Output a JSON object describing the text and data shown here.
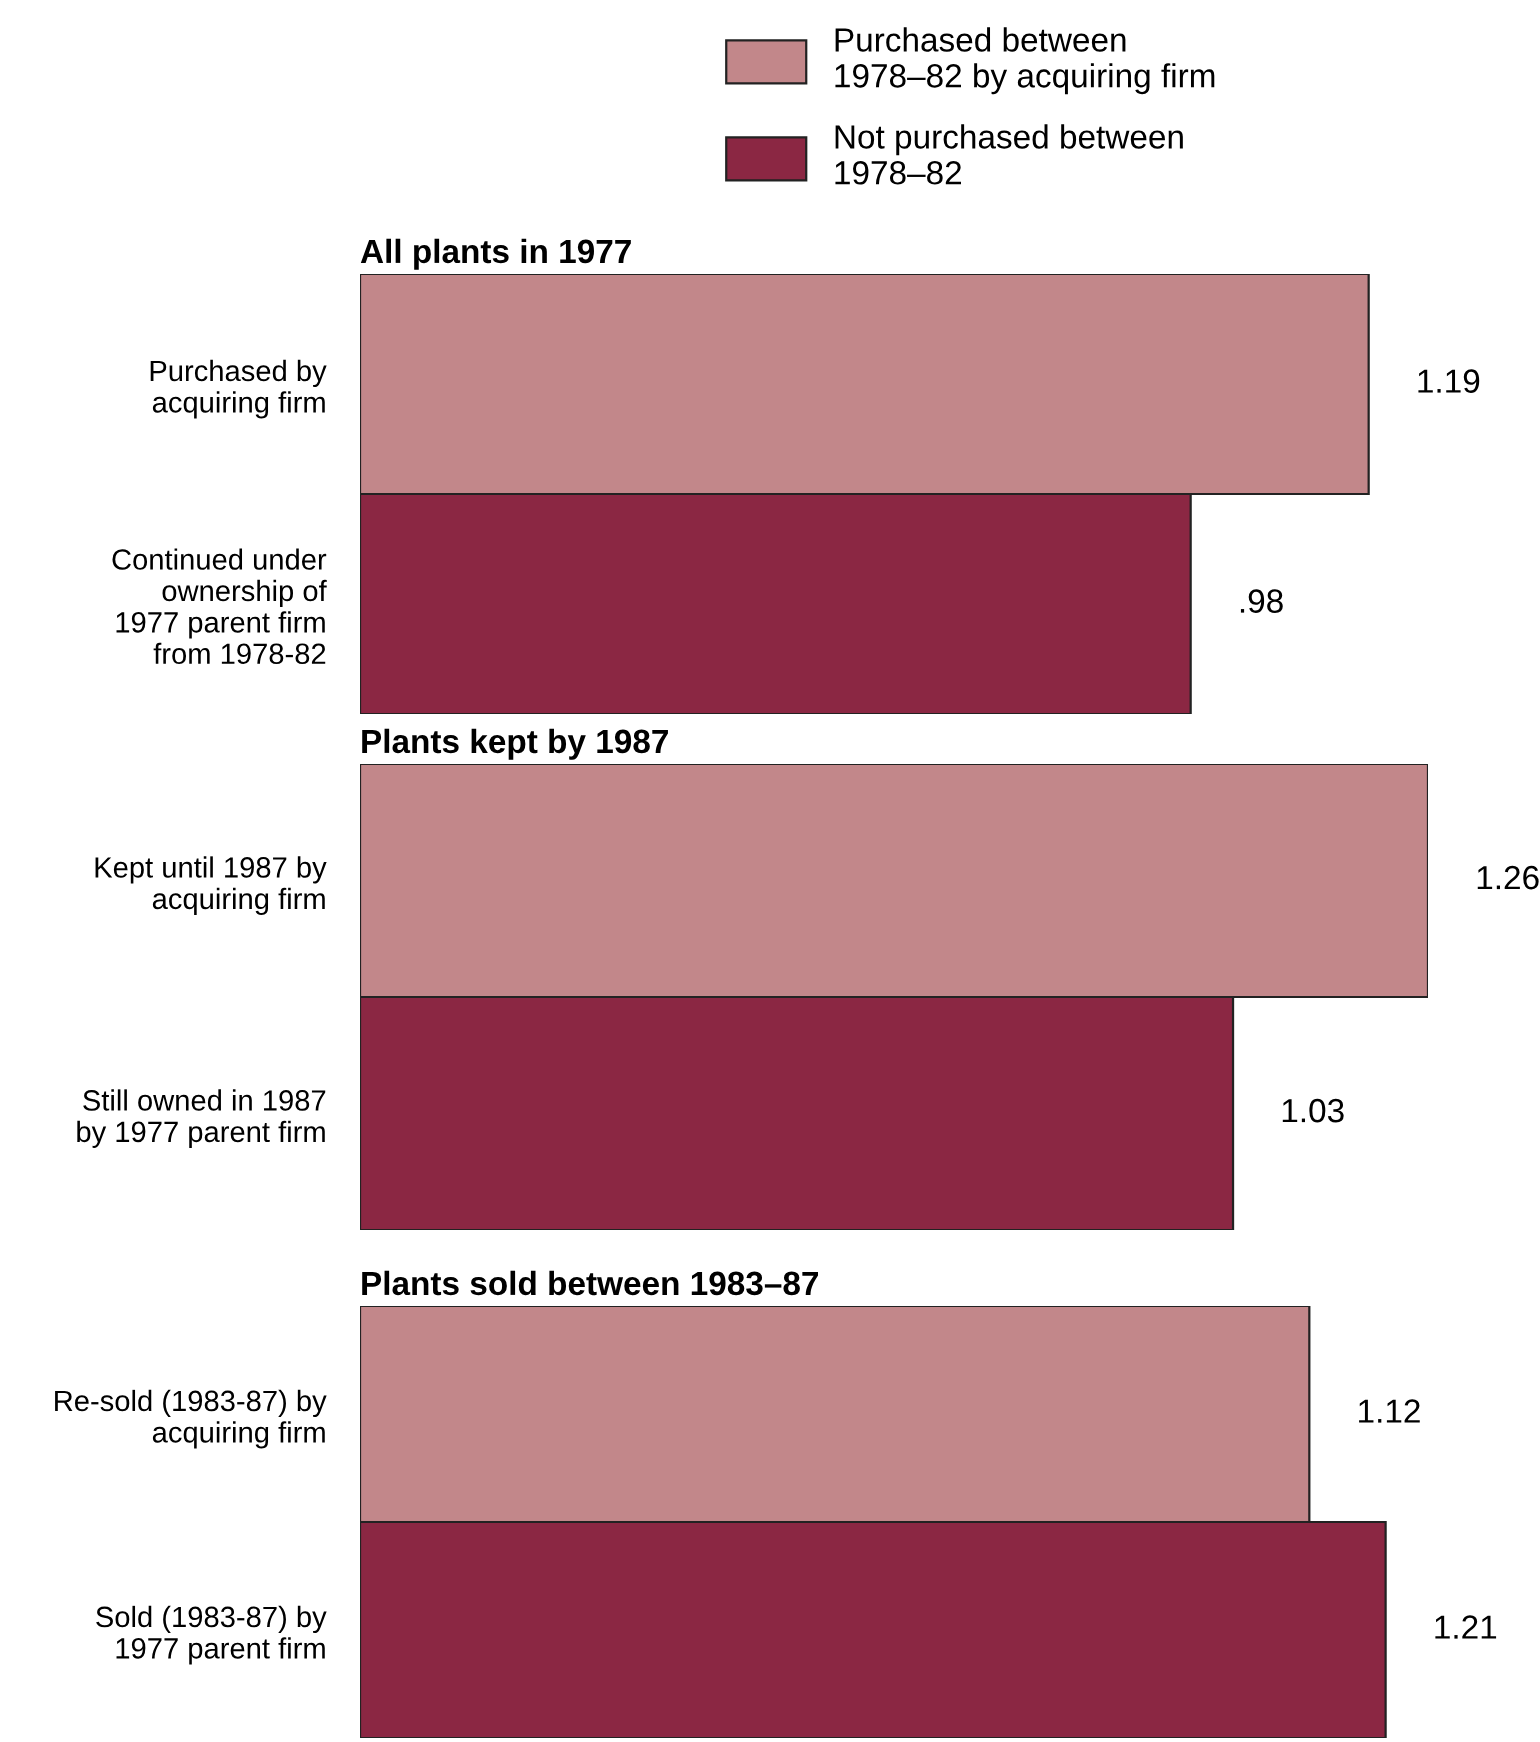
{
  "chart_data": [
    {
      "type": "bar",
      "orientation": "horizontal",
      "stacked": true,
      "title": "All plants in 1977",
      "categories": [
        "Purchased by\nacquiring firm",
        "Continued under\nownership of\n1977 parent firm\nfrom 1978-82"
      ],
      "tick_labels": "y",
      "data_labels": true,
      "legend": "top right",
      "series": [
        {
          "name": "Purchased between\n1978–82 by acquiring firm",
          "color": "#c2878a",
          "values": [
            1.19,
            null
          ],
          "value_labels": [
            "1.19",
            null
          ]
        },
        {
          "name": "Not purchased between\n1978–82",
          "color": "#8b2743",
          "values": [
            null,
            0.98
          ],
          "value_labels": [
            null,
            ".98"
          ]
        }
      ]
    },
    {
      "type": "bar",
      "orientation": "horizontal",
      "stacked": true,
      "title": "Plants kept by 1987",
      "categories": [
        "Kept until 1987 by\nacquiring firm",
        "Still owned in 1987\nby 1977 parent firm"
      ],
      "tick_labels": "y",
      "data_labels": true,
      "series": [
        {
          "color": "#c2878a",
          "values": [
            1.26,
            null
          ]
        },
        {
          "color": "#8b2743",
          "values": [
            null,
            1.03
          ]
        }
      ]
    },
    {
      "type": "bar",
      "orientation": "horizontal",
      "stacked": true,
      "title": "Plants sold between 1983–87",
      "categories": [
        "Re-sold (1983-87) by\nacquiring firm",
        "Sold (1983-87) by\n1977 parent firm"
      ],
      "tick_labels": "y",
      "data_labels": true,
      "series": [
        {
          "color": "#c2878a",
          "values": [
            1.12,
            null
          ]
        },
        {
          "color": "#8b2743",
          "values": [
            null,
            1.21
          ]
        }
      ]
    }
  ]
}
